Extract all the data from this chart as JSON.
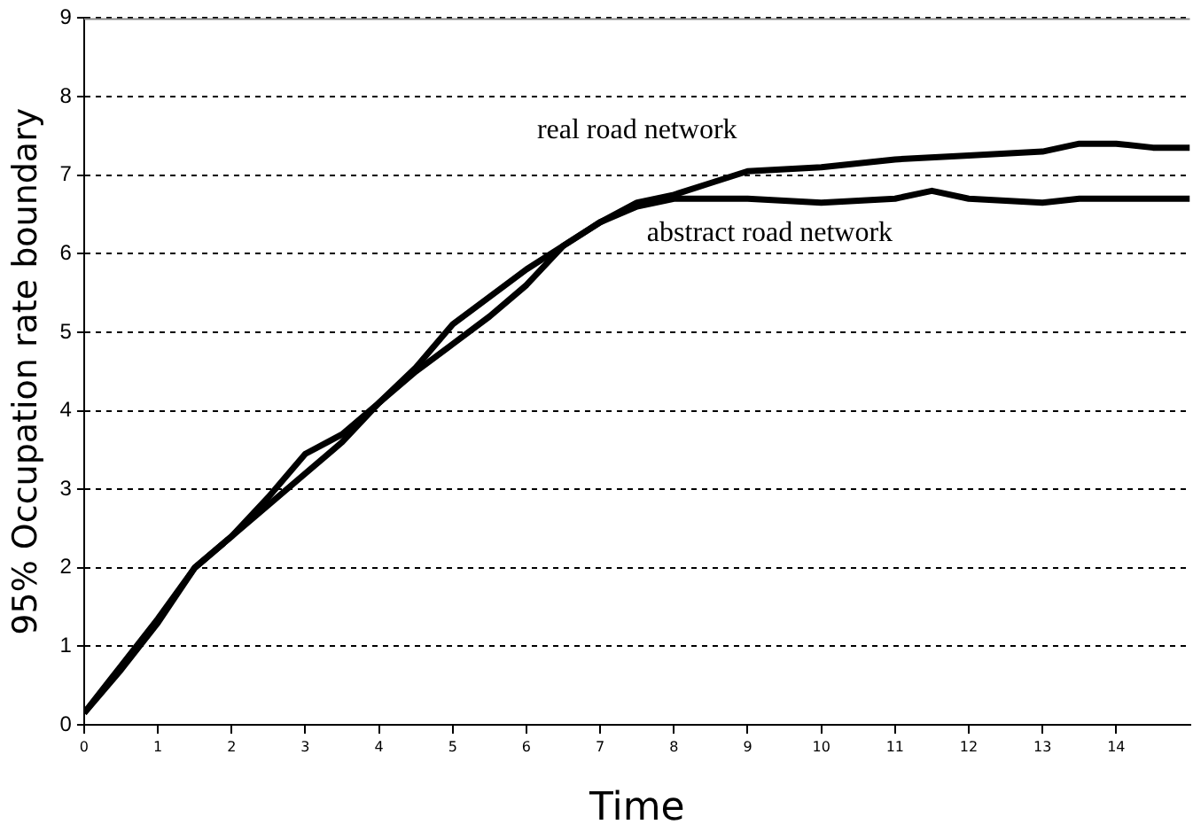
{
  "chart_data": {
    "type": "line",
    "xlabel": "Time",
    "ylabel": "95% Occupation rate boundary",
    "xlim": [
      0,
      15
    ],
    "xticks": [
      0,
      1,
      2,
      3,
      4,
      5,
      6,
      7,
      8,
      9,
      10,
      11,
      12,
      13,
      14
    ],
    "ylim": [
      0,
      9
    ],
    "yticks": [
      0,
      1,
      2,
      3,
      4,
      5,
      6,
      7,
      8,
      9
    ],
    "grid": "y",
    "legend": false,
    "marker": "none",
    "line_style": "solid",
    "series": [
      {
        "name": "real road network",
        "color": "#000000",
        "x": [
          0,
          0.5,
          1,
          1.5,
          2,
          2.5,
          3,
          3.5,
          4,
          4.5,
          5,
          5.5,
          6,
          6.5,
          7,
          7.5,
          8,
          8.5,
          9,
          10,
          11,
          12,
          13,
          13.5,
          14,
          14.5,
          15
        ],
        "values": [
          0.15,
          0.7,
          1.3,
          2.0,
          2.4,
          2.8,
          3.2,
          3.6,
          4.1,
          4.5,
          4.85,
          5.2,
          5.6,
          6.1,
          6.4,
          6.65,
          6.75,
          6.9,
          7.05,
          7.1,
          7.2,
          7.25,
          7.3,
          7.4,
          7.4,
          7.35,
          7.35
        ]
      },
      {
        "name": "abstract road network",
        "color": "#000000",
        "x": [
          0,
          0.5,
          1,
          1.5,
          2,
          2.5,
          3,
          3.5,
          4,
          4.5,
          5,
          5.5,
          6,
          6.5,
          7,
          7.5,
          8,
          9,
          10,
          11,
          11.5,
          12,
          13,
          13.5,
          14,
          15
        ],
        "values": [
          0.15,
          0.75,
          1.35,
          2.0,
          2.4,
          2.9,
          3.45,
          3.7,
          4.1,
          4.55,
          5.1,
          5.45,
          5.8,
          6.1,
          6.4,
          6.6,
          6.7,
          6.7,
          6.65,
          6.7,
          6.8,
          6.7,
          6.65,
          6.7,
          6.7,
          6.7
        ]
      }
    ]
  }
}
